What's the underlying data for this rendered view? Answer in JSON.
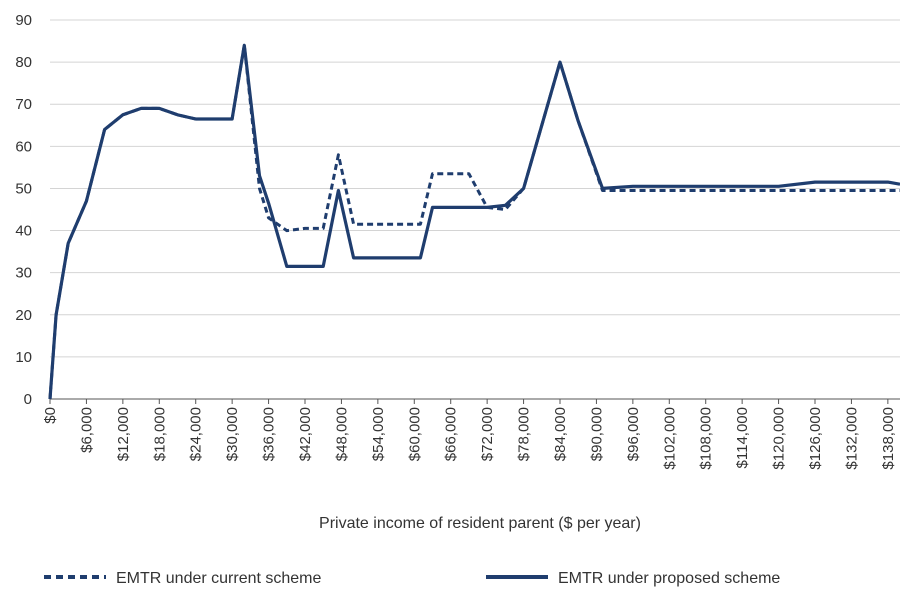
{
  "chart_data": {
    "type": "line",
    "title": "",
    "xlabel": "Private income of resident parent ($ per year)",
    "ylabel": "",
    "ylim": [
      0,
      90
    ],
    "yticks": [
      0,
      10,
      20,
      30,
      40,
      50,
      60,
      70,
      80,
      90
    ],
    "xlim": [
      0,
      140000
    ],
    "xtick_labels": [
      "$0",
      "$6,000",
      "$12,000",
      "$18,000",
      "$24,000",
      "$30,000",
      "$36,000",
      "$42,000",
      "$48,000",
      "$54,000",
      "$60,000",
      "$66,000",
      "$72,000",
      "$78,000",
      "$84,000",
      "$90,000",
      "$96,000",
      "$102,000",
      "$108,000",
      "$114,000",
      "$120,000",
      "$126,000",
      "$132,000",
      "$138,000"
    ],
    "xtick_values": [
      0,
      6000,
      12000,
      18000,
      24000,
      30000,
      36000,
      42000,
      48000,
      54000,
      60000,
      66000,
      72000,
      78000,
      84000,
      90000,
      96000,
      102000,
      108000,
      114000,
      120000,
      126000,
      132000,
      138000
    ],
    "grid": true,
    "legend_position": "bottom",
    "series": [
      {
        "name": "EMTR under current scheme",
        "style": "dashed",
        "color": "#1f3d6e",
        "x": [
          0,
          1000,
          3000,
          6000,
          9000,
          12000,
          15000,
          18000,
          21000,
          24000,
          27000,
          30000,
          32000,
          34500,
          36000,
          39000,
          42000,
          45000,
          47500,
          50000,
          54000,
          58000,
          61000,
          63000,
          66000,
          69000,
          72000,
          75000,
          78000,
          84000,
          87000,
          91000,
          96000,
          100000,
          108000,
          120000,
          126000,
          132000,
          138000,
          140000
        ],
        "y": [
          0,
          20,
          37,
          47,
          64,
          67.5,
          69,
          69,
          67.5,
          66.5,
          66.5,
          66.5,
          84,
          50,
          43,
          40,
          40.5,
          40.5,
          58,
          41.5,
          41.5,
          41.5,
          41.5,
          53.5,
          53.5,
          53.5,
          45.5,
          45,
          50,
          80,
          66,
          49.5,
          49.5,
          49.5,
          49.5,
          49.5,
          49.5,
          49.5,
          49.5,
          49.5
        ]
      },
      {
        "name": "EMTR under proposed scheme",
        "style": "solid",
        "color": "#1f3d6e",
        "x": [
          0,
          1000,
          3000,
          6000,
          9000,
          12000,
          15000,
          18000,
          21000,
          24000,
          27000,
          30000,
          32000,
          34500,
          36000,
          39000,
          42000,
          45000,
          47500,
          50000,
          54000,
          58000,
          61000,
          63000,
          66000,
          69000,
          72000,
          75000,
          78000,
          84000,
          87000,
          91000,
          96000,
          100000,
          108000,
          120000,
          126000,
          132000,
          138000,
          140000
        ],
        "y": [
          0,
          20,
          37,
          47,
          64,
          67.5,
          69,
          69,
          67.5,
          66.5,
          66.5,
          66.5,
          84,
          53,
          46.5,
          31.5,
          31.5,
          31.5,
          49.5,
          33.5,
          33.5,
          33.5,
          33.5,
          45.5,
          45.5,
          45.5,
          45.5,
          46,
          50,
          80,
          66,
          50,
          50.5,
          50.5,
          50.5,
          50.5,
          51.5,
          51.5,
          51.5,
          51
        ]
      }
    ]
  }
}
